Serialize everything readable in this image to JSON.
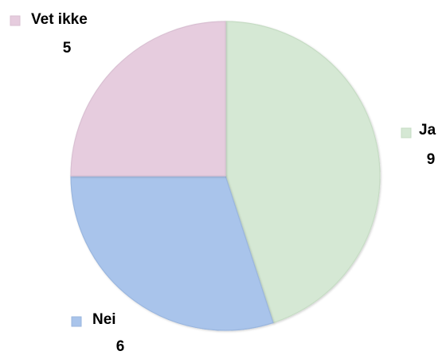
{
  "chart_data": {
    "type": "pie",
    "title": "",
    "categories": [
      "Ja",
      "Nei",
      "Vet ikke"
    ],
    "values": [
      9,
      6,
      5
    ],
    "colors": [
      "#d5e8d4",
      "#a9c4eb",
      "#e6ccde"
    ],
    "edge_colors": [
      "#c6dcc4",
      "#9ab6de",
      "#d9bfd2"
    ],
    "start": "12 o'clock",
    "direction": "clockwise",
    "legend": "none",
    "labels": "category and value, outside slices, with color marker"
  }
}
